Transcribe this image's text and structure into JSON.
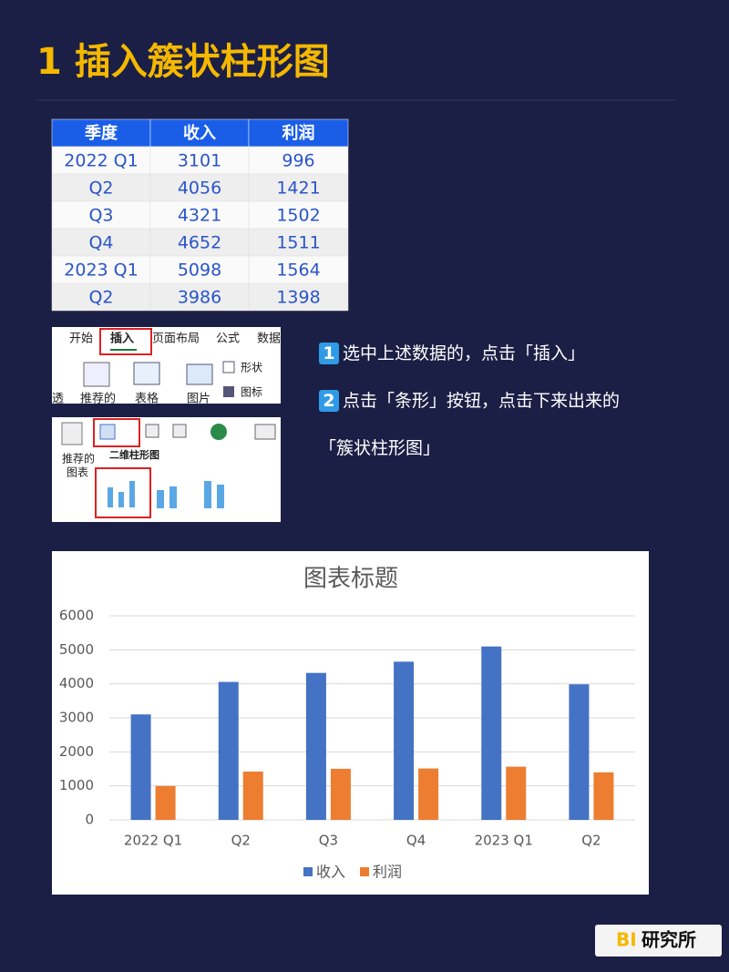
{
  "header": {
    "title": "1 插入簇状柱形图"
  },
  "table": {
    "headers": [
      "季度",
      "收入",
      "利润"
    ],
    "rows": [
      [
        "2022 Q1",
        3101,
        996
      ],
      [
        "Q2",
        4056,
        1421
      ],
      [
        "Q3",
        4321,
        1502
      ],
      [
        "Q4",
        4652,
        1511
      ],
      [
        "2023 Q1",
        5098,
        1564
      ],
      [
        "Q2",
        3986,
        1398
      ]
    ]
  },
  "ribbon": {
    "tabs": [
      "开始",
      "插入",
      "页面布局",
      "公式",
      "数据"
    ],
    "buttons": [
      "透",
      "推荐的",
      "表格",
      "图片",
      "形状",
      "图标"
    ],
    "recommended": [
      "推荐的",
      "图表"
    ],
    "gallery_title": "二维柱形图"
  },
  "steps": [
    {
      "number": "1",
      "text": "选中上述数据的，点击「插入」"
    },
    {
      "number": "2",
      "text": "点击「条形」按钮，点击下来出来的「簇状柱形图」"
    }
  ],
  "chart_data": {
    "type": "bar",
    "title": "图表标题",
    "categories": [
      "2022 Q1",
      "Q2",
      "Q3",
      "Q4",
      "2023 Q1",
      "Q2"
    ],
    "series": [
      {
        "name": "收入",
        "color": "#4472c4",
        "values": [
          3101,
          4056,
          4321,
          4652,
          5098,
          3986
        ]
      },
      {
        "name": "利润",
        "color": "#ed7d31",
        "values": [
          996,
          1421,
          1502,
          1511,
          1564,
          1398
        ]
      }
    ],
    "ylim": [
      0,
      6000
    ],
    "yticks": [
      0,
      1000,
      2000,
      3000,
      4000,
      5000,
      6000
    ],
    "grid": true,
    "legend": "bottom"
  },
  "brand": {
    "mark": "BI",
    "name": "研究所"
  }
}
